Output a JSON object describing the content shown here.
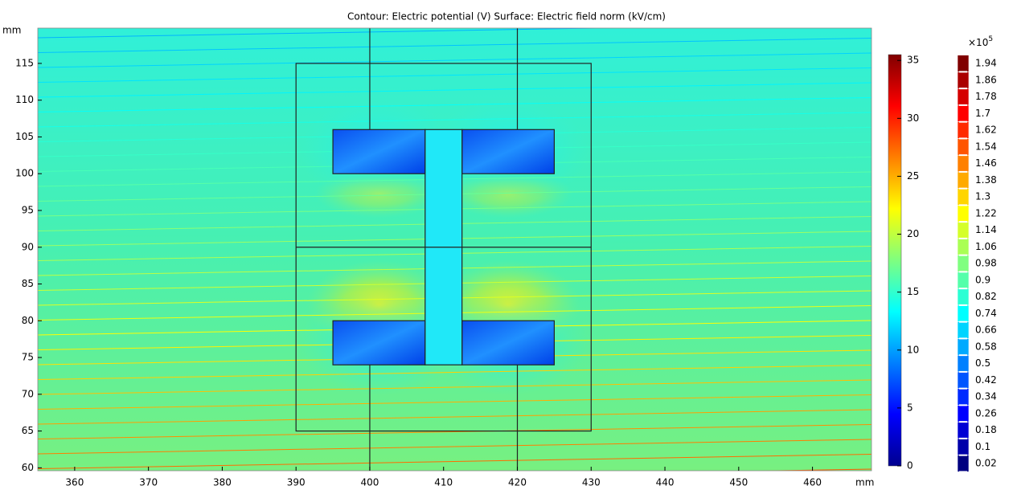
{
  "chart_data": {
    "type": "field",
    "title": "Contour: Electric potential (V)  Surface: Electric field norm (kV/cm)",
    "x_label": "mm",
    "y_label": "mm",
    "xlim": [
      355,
      468
    ],
    "ylim": [
      59.6,
      119.8
    ],
    "xticks": [
      360,
      370,
      380,
      390,
      400,
      410,
      420,
      430,
      440,
      450,
      460
    ],
    "yticks": [
      60,
      65,
      70,
      75,
      80,
      85,
      90,
      95,
      100,
      105,
      110,
      115
    ],
    "rects": [
      [
        390,
        65,
        430,
        115
      ],
      [
        395,
        100,
        407.5,
        106
      ],
      [
        412.5,
        100,
        425,
        106
      ],
      [
        395,
        74,
        407.5,
        80
      ],
      [
        412.5,
        74,
        425,
        80
      ],
      [
        407.5,
        74,
        412.5,
        106
      ]
    ],
    "segments": [
      [
        390,
        90,
        430,
        90
      ],
      [
        400,
        106,
        400,
        119.8
      ],
      [
        420,
        106,
        420,
        119.8
      ],
      [
        400,
        59.6,
        400,
        74
      ],
      [
        420,
        59.6,
        420,
        74
      ]
    ],
    "colorbar": {
      "lim": [
        0,
        35.5
      ],
      "ticks": [
        0,
        5,
        10,
        15,
        20,
        25,
        30,
        35
      ]
    },
    "contour_legend": {
      "multiplier": "×10",
      "exponent": "5",
      "levels": [
        0.02,
        0.1,
        0.18,
        0.26,
        0.34,
        0.42,
        0.5,
        0.58,
        0.66,
        0.74,
        0.82,
        0.9,
        0.98,
        1.06,
        1.14,
        1.22,
        1.3,
        1.38,
        1.46,
        1.54,
        1.62,
        1.7,
        1.78,
        1.86,
        1.94
      ]
    }
  }
}
